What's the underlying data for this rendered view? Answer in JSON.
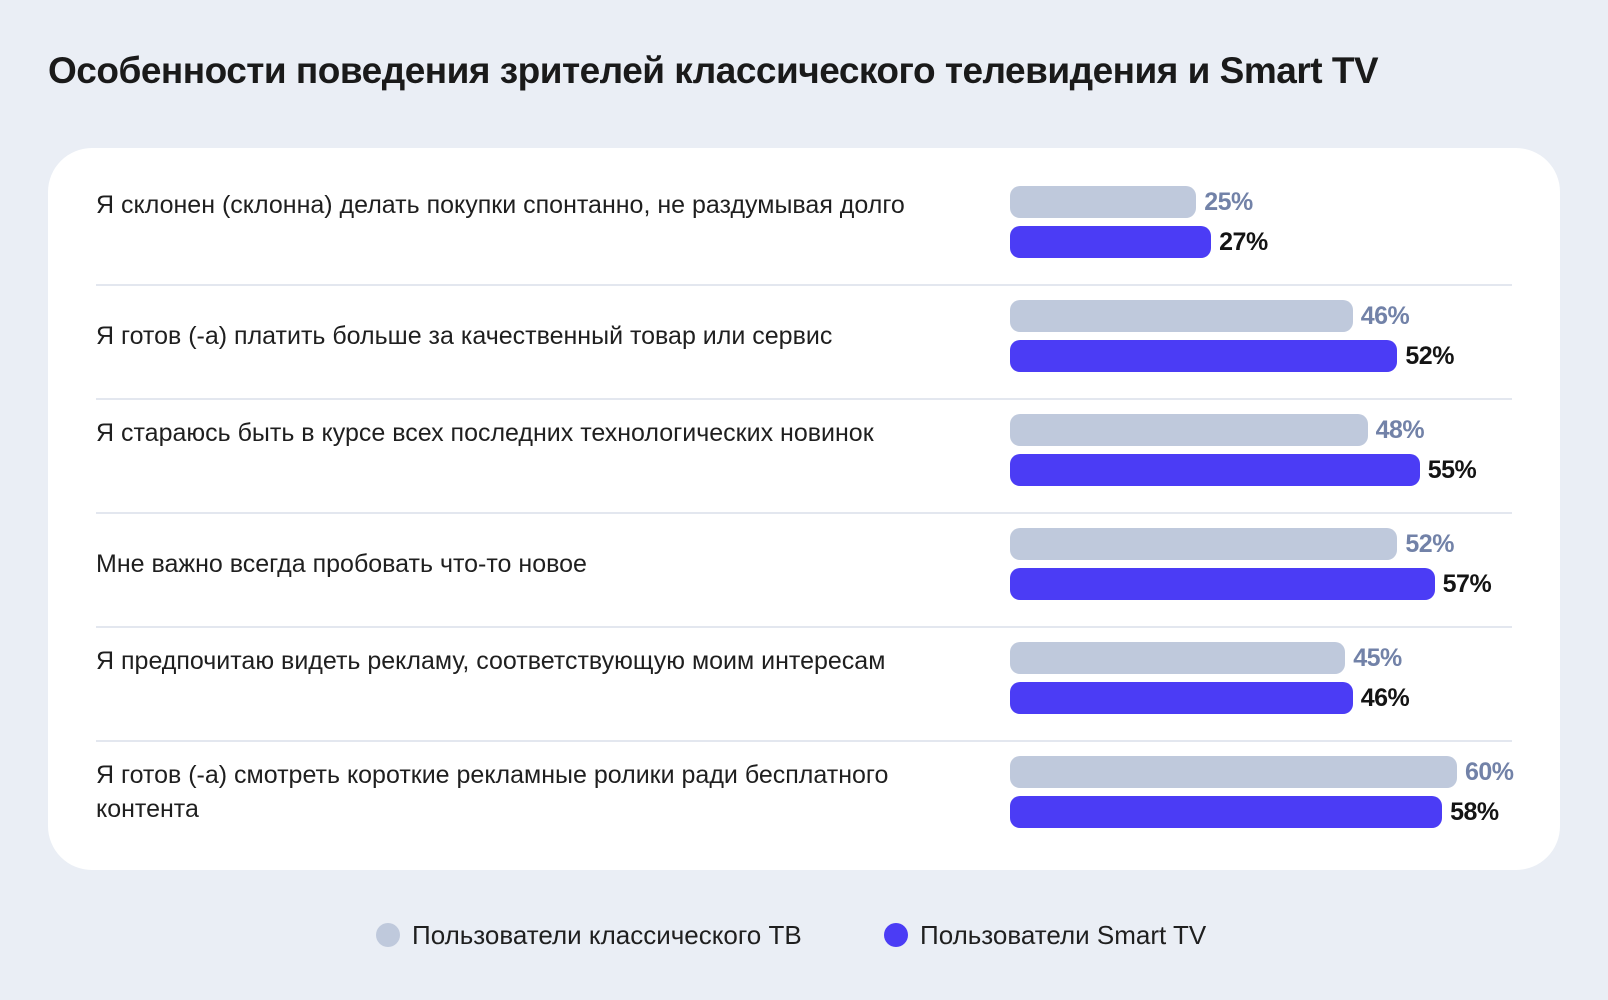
{
  "title": "Особенности поведения зрителей классического телевидения и Smart TV",
  "colors": {
    "classic": "#bfc9dc",
    "classic_label": "#7282a8",
    "smart": "#4b3cf5",
    "smart_label": "#141414"
  },
  "legend": {
    "classic": "Пользователи классического ТВ",
    "smart": "Пользователи Smart TV"
  },
  "chart_data": {
    "type": "bar",
    "orientation": "horizontal",
    "title": "Особенности поведения зрителей классического телевидения и Smart TV",
    "categories": [
      "Я склонен (склонна) делать покупки спонтанно, не раздумывая долго",
      "Я готов (-а) платить больше за качественный товар или сервис",
      "Я стараюсь быть в курсе всех последних технологических новинок",
      "Мне важно всегда пробовать что-то новое",
      "Я предпочитаю видеть рекламу, соответствующую моим интересам",
      "Я готов (-а) смотреть короткие рекламные ролики ради бесплатного контента"
    ],
    "series": [
      {
        "name": "Пользователи классического ТВ",
        "values": [
          25,
          46,
          48,
          52,
          45,
          60
        ]
      },
      {
        "name": "Пользователи Smart TV",
        "values": [
          27,
          52,
          55,
          57,
          46,
          58
        ]
      }
    ],
    "value_labels": [
      [
        "25%",
        "46%",
        "48%",
        "52%",
        "45%",
        "60%"
      ],
      [
        "27%",
        "52%",
        "55%",
        "57%",
        "46%",
        "58%"
      ]
    ],
    "xlim": [
      0,
      60
    ],
    "legend_position": "bottom-center",
    "grid": false
  }
}
